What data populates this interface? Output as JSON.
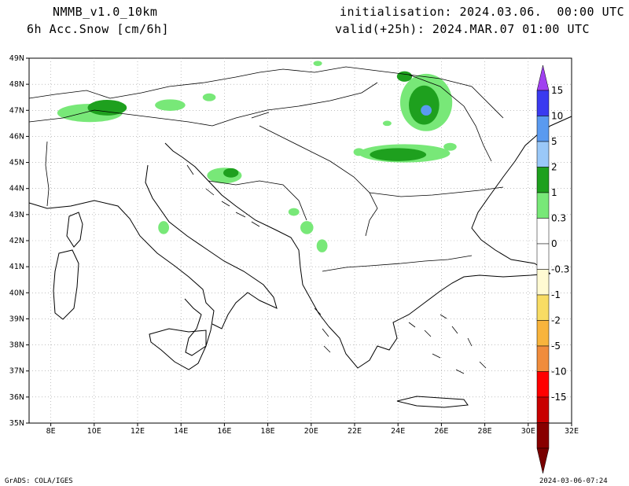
{
  "header": {
    "model": "NMMB_v1.0_10km",
    "variable": "6h Acc.Snow [cm/6h]",
    "init": "initialisation: 2024.03.06.  00:00 UTC",
    "valid": "valid(+25h): 2024.MAR.07 01:00 UTC"
  },
  "map": {
    "lon_labels": [
      "8E",
      "10E",
      "12E",
      "14E",
      "16E",
      "18E",
      "20E",
      "22E",
      "24E",
      "26E",
      "28E",
      "30E",
      "32E"
    ],
    "lat_labels": [
      "49N",
      "48N",
      "47N",
      "46N",
      "45N",
      "44N",
      "43N",
      "42N",
      "41N",
      "40N",
      "39N",
      "38N",
      "37N",
      "36N",
      "35N"
    ],
    "lon_range": [
      7,
      32
    ],
    "lat_range": [
      35,
      49
    ],
    "grid": "dotted",
    "coast_color": "#000000",
    "snow_areas": [
      {
        "name": "alps-west",
        "lon": 9.8,
        "lat": 46.9,
        "rlon": 1.5,
        "rlat": 0.35,
        "level": 0
      },
      {
        "name": "alps-central",
        "lon": 10.6,
        "lat": 47.1,
        "rlon": 0.9,
        "rlat": 0.3,
        "level": 1
      },
      {
        "name": "alps-east",
        "lon": 13.5,
        "lat": 47.2,
        "rlon": 0.7,
        "rlat": 0.22,
        "level": 0
      },
      {
        "name": "alps-east-2",
        "lon": 15.3,
        "lat": 47.5,
        "rlon": 0.3,
        "rlat": 0.15,
        "level": 0
      },
      {
        "name": "velebit",
        "lon": 16.0,
        "lat": 44.5,
        "rlon": 0.8,
        "rlat": 0.3,
        "level": 0
      },
      {
        "name": "velebit-core",
        "lon": 16.3,
        "lat": 44.6,
        "rlon": 0.35,
        "rlat": 0.18,
        "level": 1
      },
      {
        "name": "apennine",
        "lon": 13.2,
        "lat": 42.5,
        "rlon": 0.25,
        "rlat": 0.25,
        "level": 0
      },
      {
        "name": "dinaric-1",
        "lon": 19.2,
        "lat": 43.1,
        "rlon": 0.25,
        "rlat": 0.15,
        "level": 0
      },
      {
        "name": "dinaric-2",
        "lon": 19.8,
        "lat": 42.5,
        "rlon": 0.3,
        "rlat": 0.25,
        "level": 0
      },
      {
        "name": "albania",
        "lon": 20.5,
        "lat": 41.8,
        "rlon": 0.25,
        "rlat": 0.25,
        "level": 0
      },
      {
        "name": "ukraine-n",
        "lon": 20.3,
        "lat": 48.8,
        "rlon": 0.2,
        "rlat": 0.1,
        "level": 0
      },
      {
        "name": "carpathians-n",
        "lon": 25.3,
        "lat": 47.3,
        "rlon": 1.2,
        "rlat": 1.1,
        "level": 0
      },
      {
        "name": "carpathians-n-core",
        "lon": 25.2,
        "lat": 47.2,
        "rlon": 0.7,
        "rlat": 0.75,
        "level": 1
      },
      {
        "name": "carpathians-n-peak",
        "lon": 25.3,
        "lat": 47.0,
        "rlon": 0.25,
        "rlat": 0.2,
        "level": 3
      },
      {
        "name": "carpathians-n-top",
        "lon": 24.3,
        "lat": 48.3,
        "rlon": 0.35,
        "rlat": 0.2,
        "level": 1
      },
      {
        "name": "carpathians-s",
        "lon": 24.3,
        "lat": 45.35,
        "rlon": 2.1,
        "rlat": 0.35,
        "level": 0
      },
      {
        "name": "carpathians-s-core",
        "lon": 24.0,
        "lat": 45.3,
        "rlon": 1.3,
        "rlat": 0.25,
        "level": 1
      },
      {
        "name": "east-spot",
        "lon": 22.2,
        "lat": 45.4,
        "rlon": 0.25,
        "rlat": 0.15,
        "level": 0
      },
      {
        "name": "moldova-spot",
        "lon": 26.4,
        "lat": 45.6,
        "rlon": 0.3,
        "rlat": 0.15,
        "level": 0
      },
      {
        "name": "serbia-spot",
        "lon": 23.5,
        "lat": 46.5,
        "rlon": 0.2,
        "rlat": 0.1,
        "level": 0
      }
    ]
  },
  "colorbar": {
    "labels": [
      "15",
      "10",
      "5",
      "2",
      "1",
      "0.3",
      "0",
      "-0.3",
      "-1",
      "-2",
      "-5",
      "-10",
      "-15"
    ],
    "colors": [
      "#3a3af0",
      "#5a9af0",
      "#9ac8f8",
      "#1ea01e",
      "#78e878",
      "#ffffff",
      "#ffffff",
      "#fffad2",
      "#f8dc64",
      "#f8b43c",
      "#f08c3c",
      "#ff0000",
      "#c80000",
      "#880000"
    ],
    "top_color": "#a040f0",
    "bottom_color": "#780000"
  },
  "footer": {
    "left": "GrADS: COLA/IGES",
    "right": "2024-03-06-07:24"
  }
}
